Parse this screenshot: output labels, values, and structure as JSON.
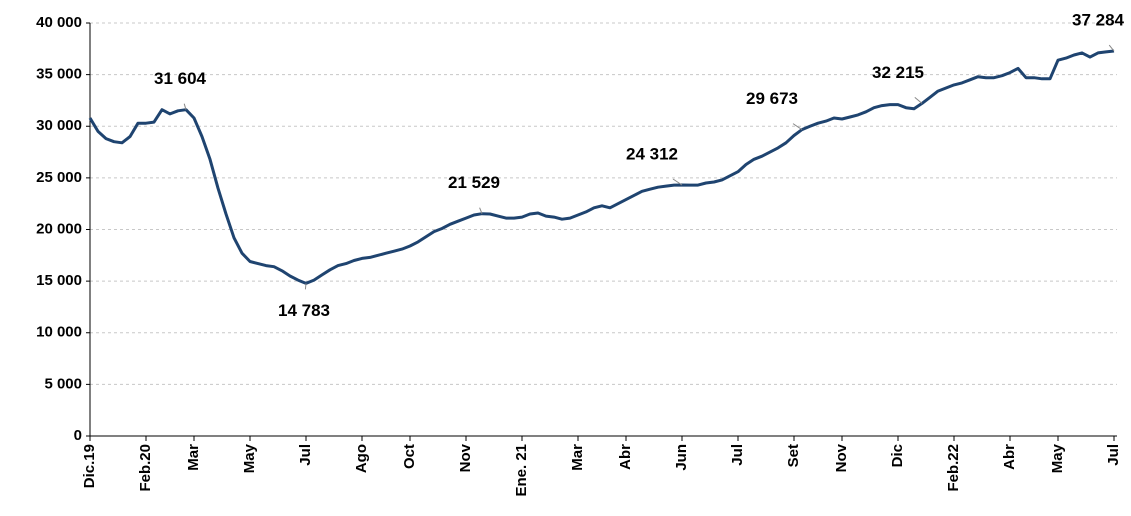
{
  "chart_data": {
    "type": "line",
    "categories": [
      "Dic.19",
      null,
      null,
      null,
      null,
      null,
      null,
      "Feb.20",
      null,
      null,
      null,
      null,
      null,
      "Mar",
      null,
      null,
      null,
      null,
      null,
      null,
      "May",
      null,
      null,
      null,
      null,
      null,
      null,
      "Jul",
      null,
      null,
      null,
      null,
      null,
      null,
      "Ago",
      null,
      null,
      null,
      null,
      null,
      "Oct",
      null,
      null,
      null,
      null,
      null,
      null,
      "Nov",
      null,
      null,
      null,
      null,
      null,
      null,
      "Ene. 21",
      null,
      null,
      null,
      null,
      null,
      null,
      "Mar",
      null,
      null,
      null,
      null,
      null,
      "Abr",
      null,
      null,
      null,
      null,
      null,
      null,
      "Jun",
      null,
      null,
      null,
      null,
      null,
      null,
      "Jul",
      null,
      null,
      null,
      null,
      null,
      null,
      "Set",
      null,
      null,
      null,
      null,
      null,
      "Nov",
      null,
      null,
      null,
      null,
      null,
      null,
      "Dic",
      null,
      null,
      null,
      null,
      null,
      null,
      "Feb.22",
      null,
      null,
      null,
      null,
      null,
      null,
      "Abr",
      null,
      null,
      null,
      null,
      null,
      "May",
      null,
      null,
      null,
      null,
      null,
      null,
      "Jul"
    ],
    "values": [
      30800,
      29500,
      28800,
      28500,
      28400,
      29000,
      30300,
      30300,
      30400,
      31600,
      31200,
      31500,
      31604,
      30800,
      29000,
      26800,
      24000,
      21500,
      19200,
      17700,
      16900,
      16700,
      16500,
      16400,
      16000,
      15500,
      15100,
      14783,
      15100,
      15600,
      16100,
      16500,
      16700,
      17000,
      17200,
      17300,
      17500,
      17700,
      17900,
      18100,
      18400,
      18800,
      19300,
      19800,
      20100,
      20500,
      20800,
      21100,
      21400,
      21529,
      21500,
      21300,
      21100,
      21100,
      21200,
      21500,
      21600,
      21300,
      21200,
      21000,
      21100,
      21400,
      21700,
      22100,
      22300,
      22100,
      22500,
      22900,
      23300,
      23700,
      23900,
      24100,
      24200,
      24300,
      24312,
      24300,
      24300,
      24500,
      24600,
      24800,
      25200,
      25600,
      26300,
      26800,
      27100,
      27500,
      27900,
      28400,
      29100,
      29673,
      30000,
      30300,
      30500,
      30800,
      30700,
      30900,
      31100,
      31400,
      31800,
      32000,
      32100,
      32100,
      31800,
      31700,
      32215,
      32800,
      33400,
      33700,
      34000,
      34200,
      34500,
      34800,
      34700,
      34700,
      34900,
      35200,
      35600,
      34700,
      34700,
      34600,
      34600,
      36400,
      36600,
      36900,
      37100,
      36700,
      37100,
      37200,
      37284
    ],
    "value_labels": [
      null,
      null,
      null,
      null,
      null,
      null,
      null,
      null,
      null,
      null,
      null,
      null,
      "31 604",
      null,
      null,
      null,
      null,
      null,
      null,
      null,
      null,
      null,
      null,
      null,
      null,
      null,
      null,
      "14 783",
      null,
      null,
      null,
      null,
      null,
      null,
      null,
      null,
      null,
      null,
      null,
      null,
      null,
      null,
      null,
      null,
      null,
      null,
      null,
      null,
      null,
      "21 529",
      null,
      null,
      null,
      null,
      null,
      null,
      null,
      null,
      null,
      null,
      null,
      null,
      null,
      null,
      null,
      null,
      null,
      null,
      null,
      null,
      null,
      null,
      null,
      null,
      "24 312",
      null,
      null,
      null,
      null,
      null,
      null,
      null,
      null,
      null,
      null,
      null,
      null,
      null,
      null,
      "29 673",
      null,
      null,
      null,
      null,
      null,
      null,
      null,
      null,
      null,
      null,
      null,
      null,
      null,
      null,
      "32 215",
      null,
      null,
      null,
      null,
      null,
      null,
      null,
      null,
      null,
      null,
      null,
      null,
      null,
      null,
      null,
      null,
      null,
      null,
      null,
      null,
      null,
      null,
      null,
      "37 284"
    ],
    "color": "#1f4470",
    "ylim": [
      0,
      40000
    ],
    "yticks": [
      0,
      {
        "value": 5000,
        "label": "5 000"
      },
      {
        "value": 10000,
        "label": "10 000"
      },
      {
        "value": 15000,
        "label": "15 000"
      },
      {
        "value": 20000,
        "label": "20 000"
      },
      {
        "value": 25000,
        "label": "25 000"
      },
      {
        "value": 30000,
        "label": "30 000"
      },
      {
        "value": 35000,
        "label": "35 000"
      },
      {
        "value": 40000,
        "label": "40 000"
      }
    ],
    "grid": true
  }
}
